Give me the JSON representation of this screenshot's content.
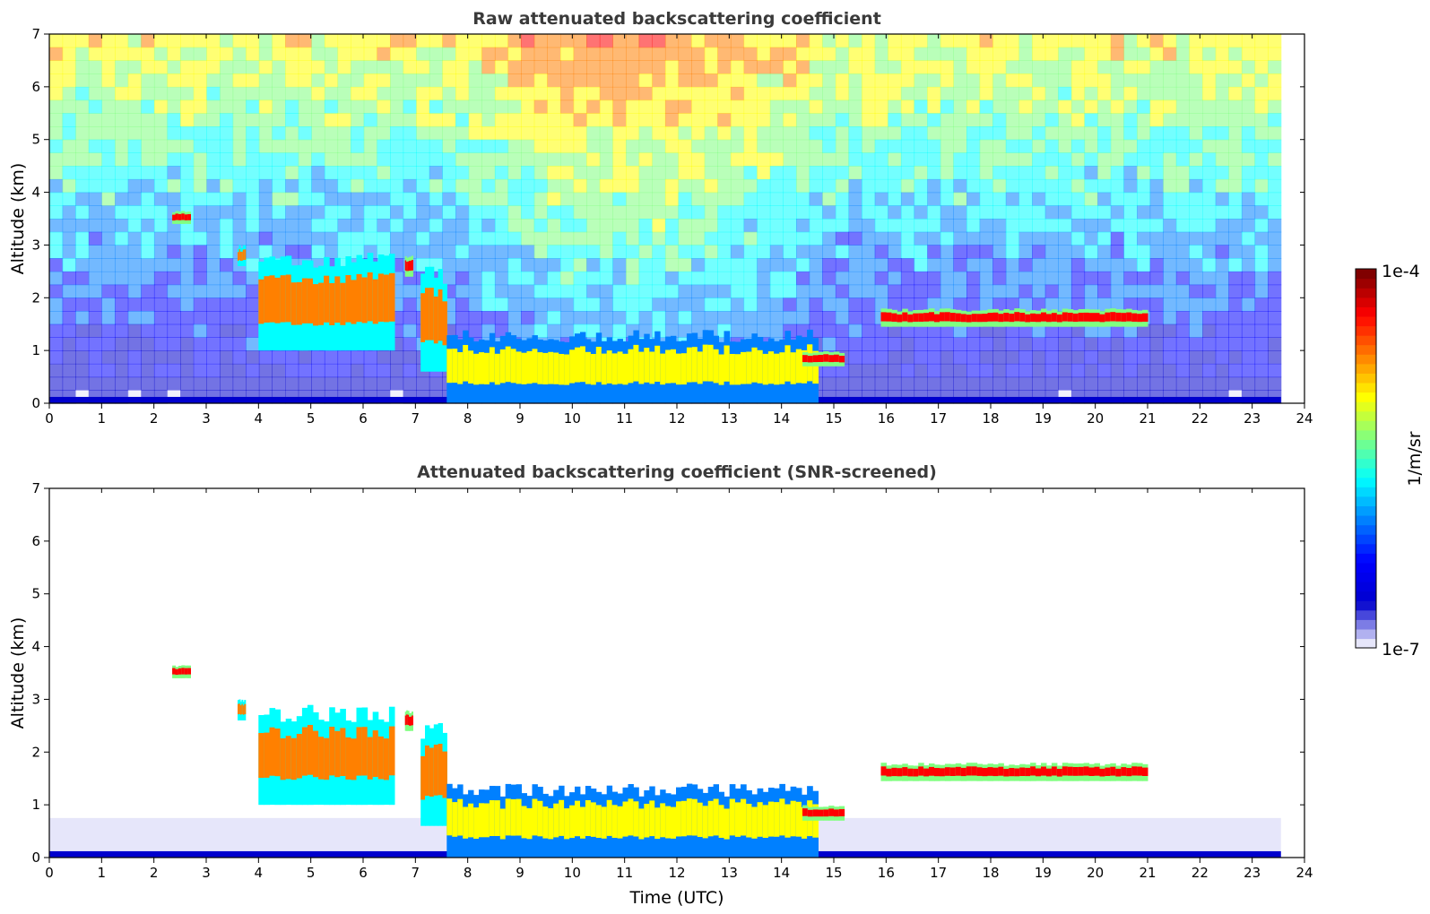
{
  "colors": {
    "jet": [
      "#e6e6fa",
      "#0000cd",
      "#0000ff",
      "#0080ff",
      "#00ffff",
      "#80ff80",
      "#ffff00",
      "#ff8000",
      "#ff0000",
      "#800000"
    ],
    "axis": "#000000",
    "title": "#3a3a3a"
  },
  "chart_data": [
    {
      "type": "heatmap",
      "title": "Raw attenuated backscattering coefficient",
      "xlabel": "",
      "ylabel": "Altitude (km)",
      "xlim": [
        0,
        24
      ],
      "ylim": [
        0,
        7
      ],
      "x_ticks": [
        "0",
        "1",
        "2",
        "3",
        "4",
        "5",
        "6",
        "7",
        "8",
        "9",
        "10",
        "11",
        "12",
        "13",
        "14",
        "15",
        "16",
        "17",
        "18",
        "19",
        "20",
        "21",
        "22",
        "23",
        "24"
      ],
      "y_ticks": [
        "0",
        "1",
        "2",
        "3",
        "4",
        "5",
        "6",
        "7"
      ],
      "data_end_hour": 23.55,
      "screened": false,
      "features": [
        {
          "t0": 2.35,
          "t1": 2.7,
          "base": 3.4,
          "top": 3.65,
          "level": 8
        },
        {
          "t0": 3.6,
          "t1": 3.75,
          "base": 2.6,
          "top": 3.0,
          "level": 7
        },
        {
          "t0": 4.0,
          "t1": 6.6,
          "base": 1.0,
          "top": 2.9,
          "level": 7
        },
        {
          "t0": 6.8,
          "t1": 6.95,
          "base": 2.4,
          "top": 2.8,
          "level": 8
        },
        {
          "t0": 7.1,
          "t1": 7.6,
          "base": 0.6,
          "top": 2.6,
          "level": 7
        },
        {
          "t0": 7.6,
          "t1": 12.9,
          "base": 0.0,
          "top": 1.4,
          "level": 6
        },
        {
          "t0": 12.9,
          "t1": 14.7,
          "base": 0.0,
          "top": 1.4,
          "level": 6
        },
        {
          "t0": 14.4,
          "t1": 15.2,
          "base": 0.7,
          "top": 1.0,
          "level": 8
        },
        {
          "t0": 15.9,
          "t1": 21.0,
          "base": 1.45,
          "top": 1.8,
          "level": 8
        }
      ]
    },
    {
      "type": "heatmap",
      "title": "Attenuated backscattering coefficient (SNR-screened)",
      "xlabel": "Time (UTC)",
      "ylabel": "Altitude (km)",
      "xlim": [
        0,
        24
      ],
      "ylim": [
        0,
        7
      ],
      "x_ticks": [
        "0",
        "1",
        "2",
        "3",
        "4",
        "5",
        "6",
        "7",
        "8",
        "9",
        "10",
        "11",
        "12",
        "13",
        "14",
        "15",
        "16",
        "17",
        "18",
        "19",
        "20",
        "21",
        "22",
        "23",
        "24"
      ],
      "y_ticks": [
        "0",
        "1",
        "2",
        "3",
        "4",
        "5",
        "6",
        "7"
      ],
      "data_end_hour": 23.55,
      "screened": true,
      "features": [
        {
          "t0": 2.35,
          "t1": 2.7,
          "base": 3.4,
          "top": 3.65,
          "level": 8
        },
        {
          "t0": 3.6,
          "t1": 3.75,
          "base": 2.6,
          "top": 3.0,
          "level": 7
        },
        {
          "t0": 4.0,
          "t1": 6.6,
          "base": 1.0,
          "top": 2.9,
          "level": 7
        },
        {
          "t0": 6.8,
          "t1": 6.95,
          "base": 2.4,
          "top": 2.8,
          "level": 8
        },
        {
          "t0": 7.1,
          "t1": 7.6,
          "base": 0.6,
          "top": 2.6,
          "level": 7
        },
        {
          "t0": 7.6,
          "t1": 12.9,
          "base": 0.0,
          "top": 1.4,
          "level": 6
        },
        {
          "t0": 12.9,
          "t1": 14.7,
          "base": 0.0,
          "top": 1.4,
          "level": 6
        },
        {
          "t0": 14.4,
          "t1": 15.2,
          "base": 0.7,
          "top": 1.0,
          "level": 8
        },
        {
          "t0": 15.9,
          "t1": 21.0,
          "base": 1.45,
          "top": 1.8,
          "level": 8
        }
      ]
    }
  ],
  "colorbar": {
    "label": "1/m/sr",
    "max_label": "1e-4",
    "min_label": "1e-7",
    "range": [
      1e-07,
      0.0001
    ],
    "scale": "log"
  }
}
